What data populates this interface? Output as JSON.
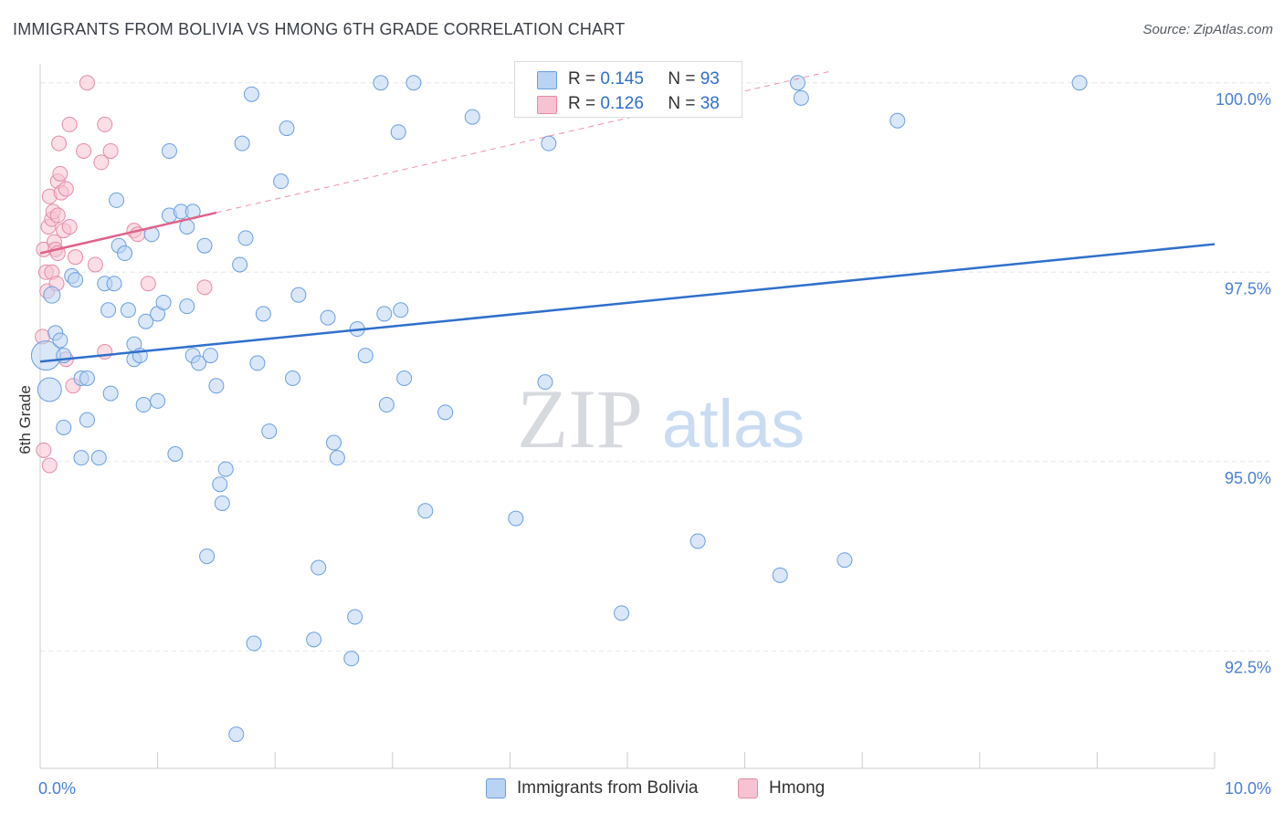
{
  "title": "IMMIGRANTS FROM BOLIVIA VS HMONG 6TH GRADE CORRELATION CHART",
  "source": "Source: ZipAtlas.com",
  "watermark": {
    "zip": "ZIP",
    "atlas": "atlas"
  },
  "colors": {
    "blue_fill": "#b9d3f3",
    "blue_stroke": "#6a9fe0",
    "blue_line": "#2f6fcc",
    "pink_fill": "#f7c3d2",
    "pink_stroke": "#e58ba7",
    "pink_line": "#e0628a",
    "axis_text": "#4a7fd4",
    "grid": "#e3e6ea"
  },
  "stats": {
    "r_label": "R =",
    "n_label": "N =",
    "rows": [
      {
        "series": "Immigrants from Bolivia",
        "r": "0.145",
        "n": "93"
      },
      {
        "series": "Hmong",
        "r": "0.126",
        "n": "38"
      }
    ]
  },
  "legend": {
    "items": [
      "Immigrants from Bolivia",
      "Hmong"
    ]
  },
  "chart_data": {
    "type": "scatter",
    "title": "IMMIGRANTS FROM BOLIVIA VS HMONG 6TH GRADE CORRELATION CHART",
    "xlabel": "",
    "ylabel": "6th Grade",
    "xlim": [
      0,
      10
    ],
    "ylim": [
      90.95,
      100.25
    ],
    "x_tick_labels": [
      {
        "value": 0,
        "label": "0.0%"
      },
      {
        "value": 10,
        "label": "10.0%"
      }
    ],
    "y_tick_labels": [
      {
        "value": 100,
        "label": "100.0%"
      },
      {
        "value": 97.5,
        "label": "97.5%"
      },
      {
        "value": 95,
        "label": "95.0%"
      },
      {
        "value": 92.5,
        "label": "92.5%"
      }
    ],
    "x_minor_ticks": [
      0,
      1,
      2,
      3,
      4,
      5,
      6,
      7,
      8,
      9,
      10
    ],
    "series": [
      {
        "name": "Immigrants from Bolivia",
        "trendline": {
          "x": [
            0,
            10
          ],
          "y": [
            96.32,
            97.87
          ]
        },
        "points": [
          [
            0.05,
            96.4,
            16
          ],
          [
            0.08,
            95.95,
            13
          ],
          [
            0.1,
            97.2,
            9
          ],
          [
            0.13,
            96.7,
            8
          ],
          [
            0.17,
            96.6,
            8
          ],
          [
            0.2,
            96.4,
            8
          ],
          [
            0.2,
            95.45,
            8
          ],
          [
            0.27,
            97.45,
            8
          ],
          [
            0.3,
            97.4,
            8
          ],
          [
            0.35,
            96.1,
            8
          ],
          [
            0.35,
            95.05,
            8
          ],
          [
            0.4,
            96.1,
            8
          ],
          [
            0.4,
            95.55,
            8
          ],
          [
            0.5,
            95.05,
            8
          ],
          [
            0.55,
            97.35,
            8
          ],
          [
            0.58,
            97.0,
            8
          ],
          [
            0.6,
            95.9,
            8
          ],
          [
            0.63,
            97.35,
            8
          ],
          [
            0.65,
            98.45,
            8
          ],
          [
            0.67,
            97.85,
            8
          ],
          [
            0.72,
            97.75,
            8
          ],
          [
            0.75,
            97.0,
            8
          ],
          [
            0.8,
            96.55,
            8
          ],
          [
            0.8,
            96.35,
            8
          ],
          [
            0.85,
            96.4,
            8
          ],
          [
            0.88,
            95.75,
            8
          ],
          [
            0.9,
            96.85,
            8
          ],
          [
            0.95,
            98.0,
            8
          ],
          [
            1.0,
            96.95,
            8
          ],
          [
            1.0,
            95.8,
            8
          ],
          [
            1.05,
            97.1,
            8
          ],
          [
            1.1,
            99.1,
            8
          ],
          [
            1.1,
            98.25,
            8
          ],
          [
            1.15,
            95.1,
            8
          ],
          [
            1.2,
            98.3,
            8
          ],
          [
            1.25,
            98.1,
            8
          ],
          [
            1.25,
            97.05,
            8
          ],
          [
            1.3,
            96.4,
            8
          ],
          [
            1.3,
            98.3,
            8
          ],
          [
            1.35,
            96.3,
            8
          ],
          [
            1.4,
            97.85,
            8
          ],
          [
            1.42,
            93.75,
            8
          ],
          [
            1.45,
            96.4,
            8
          ],
          [
            1.5,
            96.0,
            8
          ],
          [
            1.53,
            94.7,
            8
          ],
          [
            1.55,
            94.45,
            8
          ],
          [
            1.58,
            94.9,
            8
          ],
          [
            1.67,
            91.4,
            8
          ],
          [
            1.7,
            97.6,
            8
          ],
          [
            1.72,
            99.2,
            8
          ],
          [
            1.75,
            97.95,
            8
          ],
          [
            1.8,
            99.85,
            8
          ],
          [
            1.82,
            92.6,
            8
          ],
          [
            1.85,
            96.3,
            8
          ],
          [
            1.9,
            96.95,
            8
          ],
          [
            1.95,
            95.4,
            8
          ],
          [
            2.05,
            98.7,
            8
          ],
          [
            2.1,
            99.4,
            8
          ],
          [
            2.15,
            96.1,
            8
          ],
          [
            2.2,
            97.2,
            8
          ],
          [
            2.33,
            92.65,
            8
          ],
          [
            2.37,
            93.6,
            8
          ],
          [
            2.45,
            96.9,
            8
          ],
          [
            2.5,
            95.25,
            8
          ],
          [
            2.53,
            95.05,
            8
          ],
          [
            2.65,
            92.4,
            8
          ],
          [
            2.68,
            92.95,
            8
          ],
          [
            2.7,
            96.75,
            8
          ],
          [
            2.77,
            96.4,
            8
          ],
          [
            2.9,
            100.0,
            8
          ],
          [
            2.93,
            96.95,
            8
          ],
          [
            2.95,
            95.75,
            8
          ],
          [
            3.05,
            99.35,
            8
          ],
          [
            3.07,
            97.0,
            8
          ],
          [
            3.1,
            96.1,
            8
          ],
          [
            3.18,
            100.0,
            8
          ],
          [
            3.28,
            94.35,
            8
          ],
          [
            3.45,
            95.65,
            8
          ],
          [
            3.68,
            99.55,
            8
          ],
          [
            4.05,
            94.25,
            8
          ],
          [
            4.2,
            100.0,
            8
          ],
          [
            4.3,
            96.05,
            8
          ],
          [
            4.33,
            99.2,
            8
          ],
          [
            4.95,
            93.0,
            8
          ],
          [
            5.15,
            100.0,
            8
          ],
          [
            5.6,
            93.95,
            8
          ],
          [
            5.65,
            100.0,
            8
          ],
          [
            6.3,
            93.5,
            8
          ],
          [
            6.45,
            100.0,
            8
          ],
          [
            6.48,
            99.8,
            8
          ],
          [
            6.85,
            93.7,
            8
          ],
          [
            7.3,
            99.5,
            8
          ],
          [
            8.85,
            100.0,
            8
          ]
        ]
      },
      {
        "name": "Hmong",
        "trendline": {
          "x": [
            0,
            10
          ],
          "y": [
            97.75,
            101.32
          ]
        },
        "trendline_solid_to_x": 1.5,
        "points": [
          [
            0.02,
            96.65,
            8
          ],
          [
            0.03,
            95.15,
            8
          ],
          [
            0.03,
            97.8,
            8
          ],
          [
            0.05,
            97.5,
            8
          ],
          [
            0.06,
            97.25,
            8
          ],
          [
            0.07,
            98.1,
            8
          ],
          [
            0.08,
            94.95,
            8
          ],
          [
            0.08,
            98.5,
            8
          ],
          [
            0.1,
            98.2,
            8
          ],
          [
            0.1,
            97.5,
            8
          ],
          [
            0.11,
            98.3,
            8
          ],
          [
            0.12,
            97.9,
            8
          ],
          [
            0.13,
            97.8,
            8
          ],
          [
            0.14,
            97.35,
            8
          ],
          [
            0.15,
            98.7,
            8
          ],
          [
            0.15,
            98.25,
            8
          ],
          [
            0.15,
            97.75,
            8
          ],
          [
            0.16,
            99.2,
            8
          ],
          [
            0.17,
            98.8,
            8
          ],
          [
            0.18,
            98.55,
            8
          ],
          [
            0.2,
            98.05,
            8
          ],
          [
            0.22,
            98.6,
            8
          ],
          [
            0.22,
            96.35,
            8
          ],
          [
            0.25,
            98.1,
            8
          ],
          [
            0.25,
            99.45,
            8
          ],
          [
            0.28,
            96.0,
            8
          ],
          [
            0.3,
            97.7,
            8
          ],
          [
            0.37,
            99.1,
            8
          ],
          [
            0.4,
            100.0,
            8
          ],
          [
            0.47,
            97.6,
            8
          ],
          [
            0.52,
            98.95,
            8
          ],
          [
            0.55,
            96.45,
            8
          ],
          [
            0.55,
            99.45,
            8
          ],
          [
            0.6,
            99.1,
            8
          ],
          [
            0.8,
            98.05,
            8
          ],
          [
            0.83,
            98.0,
            8
          ],
          [
            0.92,
            97.35,
            8
          ],
          [
            1.4,
            97.3,
            8
          ]
        ]
      }
    ]
  }
}
